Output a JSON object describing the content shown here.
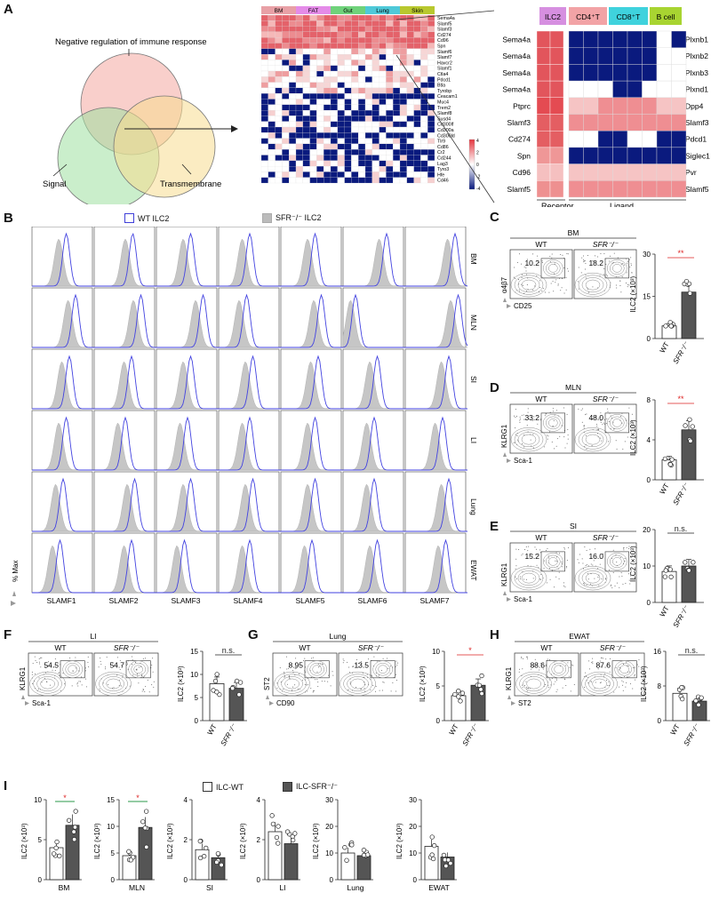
{
  "panels": {
    "A": "A",
    "B": "B",
    "C": "C",
    "D": "D",
    "E": "E",
    "F": "F",
    "G": "G",
    "H": "H",
    "I": "I"
  },
  "venn": {
    "top_label": "Negative regulation of immune response",
    "left_label": "Signal",
    "right_label": "Transmembrane"
  },
  "heatmap": {
    "tissues": [
      "BM",
      "FAT",
      "Gut",
      "Lung",
      "Skin"
    ],
    "tissue_colors": [
      "#e8a0a6",
      "#e48be8",
      "#6fd27a",
      "#4ec9d8",
      "#b8c82e"
    ],
    "genes": [
      "Sema4a",
      "Slamf5",
      "Slamf3",
      "Cd274",
      "Cd96",
      "Spn",
      "Slamf6",
      "Slamf7",
      "Havcr2",
      "Slamf1",
      "Ctla4",
      "Pdcd1",
      "Btla",
      "Tyrobp",
      "Ceacam1",
      "Muc4",
      "Trem2",
      "Slamf8",
      "Susd4",
      "Cd300lf",
      "Cd300a",
      "Cd300ld",
      "Tlr9",
      "Cd86",
      "Cr2",
      "Cd244",
      "Lag3",
      "Tyro3",
      "Hfe",
      "Cd46"
    ],
    "scale_labels": [
      "4",
      "2",
      "0",
      "-2",
      "-4"
    ]
  },
  "receptor_ligand": {
    "col_headers": [
      "ILC2",
      "CD4⁺T",
      "CD8⁺T",
      "B cell"
    ],
    "receptors": [
      "Sema4a",
      "Sema4a",
      "Sema4a",
      "Sema4a",
      "Ptprc",
      "Slamf3",
      "Cd274",
      "Spn",
      "Cd96",
      "Slamf5"
    ],
    "ligands": [
      "Plxnb1",
      "Plxnb2",
      "Plxnb3",
      "Plxnd1",
      "Dpp4",
      "Slamf3",
      "Pdcd1",
      "Siglec1",
      "Pvr",
      "Slamf5"
    ],
    "footer_receptor": "Receptor",
    "footer_ligand": "Ligand"
  },
  "legend_B": {
    "wt": "WT ILC2",
    "sfr": "SFR⁻/⁻ ILC2"
  },
  "histo": {
    "rows": [
      "BM",
      "MLN",
      "SI",
      "LI",
      "Lung",
      "EWAT"
    ],
    "cols": [
      "SLAMF1",
      "SLAMF2",
      "SLAMF3",
      "SLAMF4",
      "SLAMF5",
      "SLAMF6",
      "SLAMF7"
    ],
    "ylabel": "% Max"
  },
  "flow": {
    "C": {
      "title": "BM",
      "wt": "WT",
      "ko": "SFR⁻/⁻",
      "v1": "10.2",
      "v2": "18.2",
      "y": "α4β7",
      "x": "CD25"
    },
    "D": {
      "title": "MLN",
      "wt": "WT",
      "ko": "SFR⁻/⁻",
      "v1": "33.2",
      "v2": "48.0",
      "y": "KLRG1",
      "x": "Sca-1"
    },
    "E": {
      "title": "SI",
      "wt": "WT",
      "ko": "SFR⁻/⁻",
      "v1": "15.2",
      "v2": "16.0",
      "y": "KLRG1",
      "x": "Sca-1"
    },
    "F": {
      "title": "LI",
      "wt": "WT",
      "ko": "SFR⁻/⁻",
      "v1": "54.5",
      "v2": "54.7",
      "y": "KLRG1",
      "x": "Sca-1"
    },
    "G": {
      "title": "Lung",
      "wt": "WT",
      "ko": "SFR⁻/⁻",
      "v1": "8.95",
      "v2": "13.5",
      "y": "ST2",
      "x": "CD90"
    },
    "H": {
      "title": "EWAT",
      "wt": "WT",
      "ko": "SFR⁻/⁻",
      "v1": "88.6",
      "v2": "87.6",
      "y": "KLRG1",
      "x": "ST2"
    }
  },
  "chart_data": [
    {
      "type": "bar",
      "panel": "C",
      "ylabel": "ILC2 (×10³)",
      "ylim": [
        0,
        30
      ],
      "ticks": [
        0,
        15,
        30
      ],
      "categories": [
        "WT",
        "SFR⁻/⁻"
      ],
      "values": [
        4.5,
        16.5
      ],
      "sig": "**"
    },
    {
      "type": "bar",
      "panel": "D",
      "ylabel": "ILC2 (×10³)",
      "ylim": [
        0,
        8
      ],
      "ticks": [
        0,
        4,
        8
      ],
      "categories": [
        "WT",
        "SFR⁻/⁻"
      ],
      "values": [
        2.0,
        5.0
      ],
      "sig": "**"
    },
    {
      "type": "bar",
      "panel": "E",
      "ylabel": "ILC2 (×10³)",
      "ylim": [
        0,
        20
      ],
      "ticks": [
        0,
        10,
        20
      ],
      "categories": [
        "WT",
        "SFR⁻/⁻"
      ],
      "values": [
        8.5,
        10.0
      ],
      "sig": "n.s."
    },
    {
      "type": "bar",
      "panel": "F",
      "ylabel": "ILC2 (×10³)",
      "ylim": [
        0,
        15
      ],
      "ticks": [
        0,
        5,
        10,
        15
      ],
      "categories": [
        "WT",
        "SFR⁻/⁻"
      ],
      "values": [
        8.0,
        7.0
      ],
      "sig": "n.s."
    },
    {
      "type": "bar",
      "panel": "G",
      "ylabel": "ILC2 (×10³)",
      "ylim": [
        0,
        10
      ],
      "ticks": [
        0,
        5,
        10
      ],
      "categories": [
        "WT",
        "SFR⁻/⁻"
      ],
      "values": [
        3.6,
        5.1
      ],
      "sig": "*"
    },
    {
      "type": "bar",
      "panel": "H",
      "ylabel": "ILC2 (×10³)",
      "ylim": [
        0,
        16
      ],
      "ticks": [
        0,
        8,
        16
      ],
      "categories": [
        "WT",
        "SFR⁻/⁻"
      ],
      "values": [
        6.3,
        4.5
      ],
      "sig": "n.s."
    }
  ],
  "chart_I": {
    "legend_wt": "ILC-WT",
    "legend_ko": "ILC-SFR⁻/⁻",
    "ylabel": "ILC2 (×10³)",
    "groups": [
      {
        "name": "BM",
        "ticks": [
          0,
          5,
          10
        ],
        "ymax": 10,
        "values": [
          4.0,
          6.8
        ],
        "sig": "*"
      },
      {
        "name": "MLN",
        "ticks": [
          0,
          5,
          10,
          15
        ],
        "ymax": 15,
        "values": [
          4.5,
          9.8
        ],
        "sig": "*"
      },
      {
        "name": "SI",
        "ticks": [
          0,
          2,
          4
        ],
        "ymax": 4,
        "values": [
          1.5,
          1.1
        ],
        "sig": ""
      },
      {
        "name": "LI",
        "ticks": [
          0,
          2,
          4
        ],
        "ymax": 4,
        "values": [
          2.4,
          1.8
        ],
        "sig": ""
      },
      {
        "name": "Lung",
        "ticks": [
          0,
          10,
          20,
          30
        ],
        "ymax": 30,
        "values": [
          10.0,
          9.0
        ],
        "sig": ""
      },
      {
        "name": "EWAT",
        "ticks": [
          0,
          10,
          20,
          30
        ],
        "ymax": 30,
        "values": [
          12.5,
          8.5
        ],
        "sig": ""
      }
    ]
  }
}
